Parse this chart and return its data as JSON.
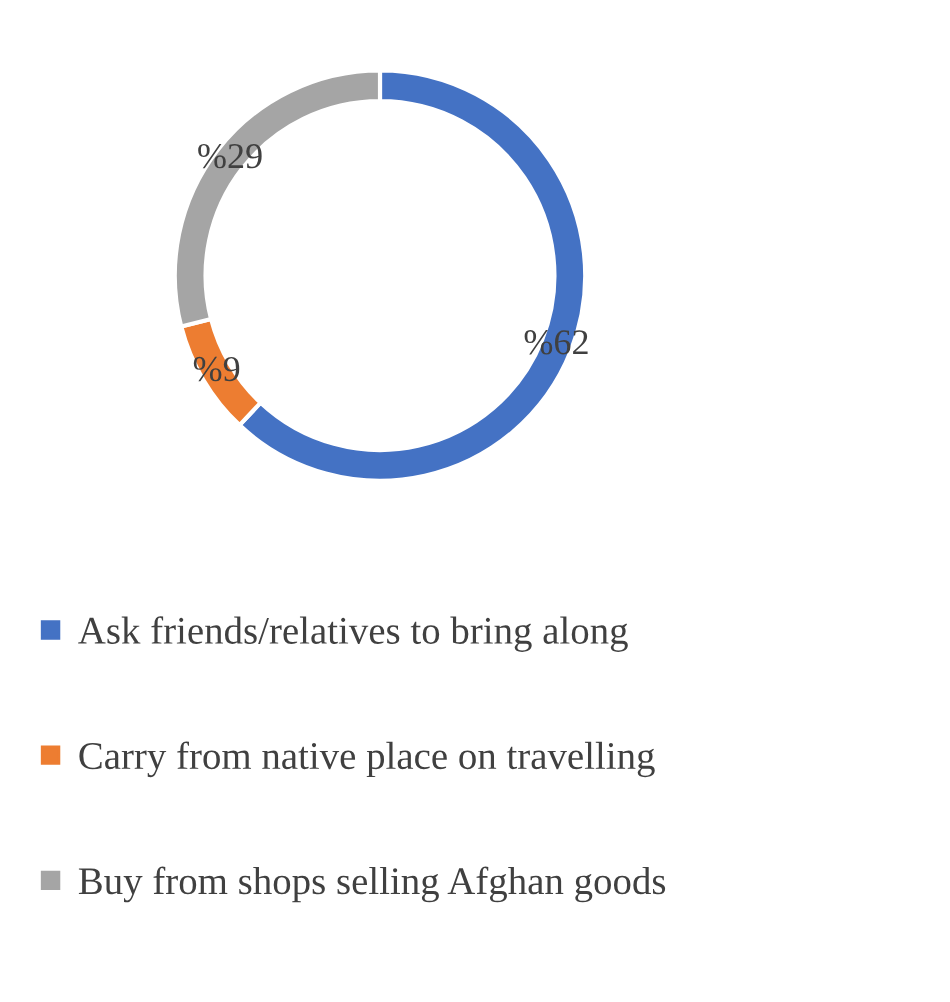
{
  "chart_data": {
    "type": "donut",
    "categories": [
      "Ask friends/relatives to bring along",
      "Carry from native place on travelling",
      "Buy from shops selling Afghan goods"
    ],
    "values": [
      62,
      9,
      29
    ],
    "colors": [
      "#4472c4",
      "#ed7d31",
      "#a5a5a5"
    ],
    "value_labels": [
      "%62",
      "%9",
      "%29"
    ],
    "legend": "bottom"
  }
}
